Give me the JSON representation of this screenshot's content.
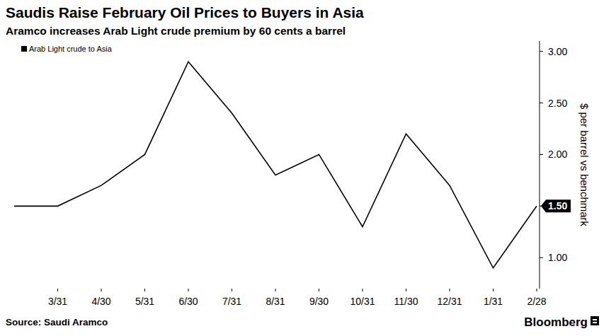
{
  "chart_data": {
    "type": "line",
    "title": "Saudis Raise February Oil Prices to Buyers in Asia",
    "subtitle": "Aramco increases Arab Light crude premium by 60 cents a barrel",
    "y_label": "$ per barrel vs benchmark",
    "source": "Source: Saudi Aramco",
    "credit": "Bloomberg",
    "categories": [
      null,
      "3/31",
      "4/30",
      "5/31",
      "6/30",
      "7/31",
      "8/31",
      "9/30",
      "10/31",
      "11/30",
      "12/31",
      "1/31",
      "2/28"
    ],
    "series": [
      {
        "name": "Arab Light crude to Asia",
        "color": "#000000",
        "values": [
          1.5,
          1.5,
          1.7,
          2.0,
          2.9,
          2.4,
          1.8,
          2.0,
          1.3,
          2.2,
          1.7,
          0.9,
          1.5
        ]
      }
    ],
    "ylim": [
      0.7,
      3.1
    ],
    "yticks": [
      {
        "value": 1,
        "label": "1.00"
      },
      {
        "value": 1.5,
        "label": "1.50"
      },
      {
        "value": 2,
        "label": "2.00"
      },
      {
        "value": 2.5,
        "label": "2.50"
      },
      {
        "value": 3,
        "label": "3.00"
      }
    ],
    "grid": false,
    "legend": "top-left"
  }
}
